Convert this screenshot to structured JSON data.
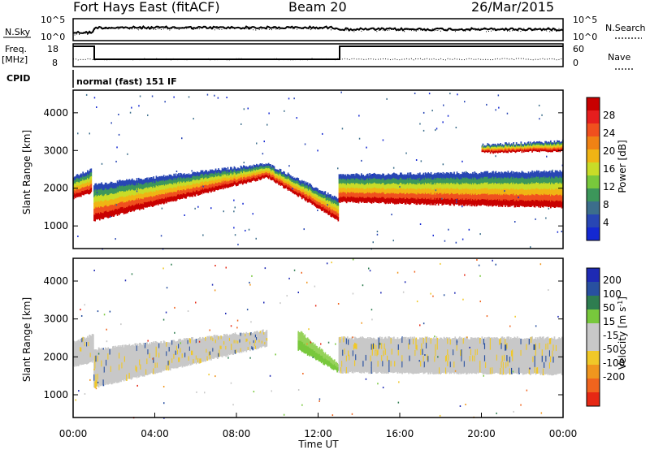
{
  "header": {
    "station": "Fort Hays East (fitACF)",
    "beam": "Beam 20",
    "date": "26/Mar/2015"
  },
  "panels": {
    "noise": {
      "left_label": "N.Sky",
      "left_ticks": [
        "10^5",
        "10^0"
      ],
      "right_label": "N.Search",
      "right_ticks": [
        "10^5",
        "10^0"
      ]
    },
    "freq": {
      "left_label_1": "Freq.",
      "left_label_2": "[MHz]",
      "left_ticks": [
        "18",
        "8"
      ],
      "right_label": "Nave",
      "right_ticks": [
        "60",
        "0"
      ]
    },
    "cpid": {
      "label": "CPID",
      "program": "normal (fast) 151 IF"
    }
  },
  "colors": {
    "power_scale": [
      "#1428d2",
      "#2846b4",
      "#3c6e8c",
      "#3c965a",
      "#78c83c",
      "#c8dc28",
      "#f0b414",
      "#f08214",
      "#f0501e",
      "#e61e1e",
      "#c80000"
    ],
    "velocity_scale": [
      "#1e2ab4",
      "#2850a0",
      "#2e7d50",
      "#78c83c",
      "#c8c8c8",
      "#c8c8c8",
      "#f0c828",
      "#f0961e",
      "#f0641e",
      "#e62814"
    ]
  },
  "chart_data": [
    {
      "type": "heatmap",
      "name_panel": "power",
      "ylabel": "Slant Range [km]",
      "yticks": [
        1000,
        2000,
        3000,
        4000
      ],
      "ylim": [
        400,
        4600
      ],
      "xlim_hours": [
        0,
        24
      ],
      "colorbar_label": "Power [dB]",
      "colorbar_ticks": [
        "4",
        "8",
        "12",
        "16",
        "20",
        "24",
        "28"
      ],
      "colorbar_range": [
        0,
        31
      ],
      "features": [
        {
          "t": [
            0.0,
            0.9
          ],
          "range_lower": [
            1750,
            1900
          ],
          "range_upper": [
            2300,
            2500
          ]
        },
        {
          "t": [
            1.0,
            9.5
          ],
          "range_lower": [
            1150,
            2300
          ],
          "range_upper": [
            2100,
            2650
          ]
        },
        {
          "t": [
            9.5,
            13.0
          ],
          "range_lower": [
            2300,
            1150
          ],
          "range_upper": [
            2650,
            1700
          ]
        },
        {
          "t": [
            13.0,
            24.0
          ],
          "range_lower": [
            1650,
            1500
          ],
          "range_upper": [
            2350,
            2450
          ]
        },
        {
          "t": [
            20.0,
            24.0
          ],
          "range_lower": [
            2950,
            3000
          ],
          "range_upper": [
            3150,
            3250
          ]
        }
      ]
    },
    {
      "type": "heatmap",
      "name_panel": "velocity",
      "ylabel": "Slant Range [km]",
      "yticks": [
        1000,
        2000,
        3000,
        4000
      ],
      "ylim": [
        400,
        4600
      ],
      "xlim_hours": [
        0,
        24
      ],
      "xticks": [
        "00:00",
        "04:00",
        "08:00",
        "12:00",
        "16:00",
        "20:00",
        "00:00"
      ],
      "xlabel": "Time UT",
      "colorbar_label": "Velocity [m s^-1]",
      "colorbar_ticks": [
        "200",
        "100",
        "50",
        "15",
        "-15",
        "-50",
        "-100",
        "-200"
      ],
      "features": [
        {
          "t": [
            0.0,
            1.0
          ],
          "velocity": "low",
          "range_lower": [
            1750,
            1900
          ],
          "range_upper": [
            2400,
            2600
          ]
        },
        {
          "t": [
            1.0,
            9.5
          ],
          "velocity": "low",
          "range_lower": [
            1200,
            2300
          ],
          "range_upper": [
            2200,
            2700
          ]
        },
        {
          "t": [
            11.0,
            13.0
          ],
          "velocity": "negative-flow-green",
          "range_lower": [
            2200,
            1600
          ],
          "range_upper": [
            2700,
            1800
          ]
        },
        {
          "t": [
            13.0,
            24.0
          ],
          "velocity": "low",
          "range_lower": [
            1600,
            1550
          ],
          "range_upper": [
            2500,
            2500
          ]
        }
      ]
    }
  ]
}
